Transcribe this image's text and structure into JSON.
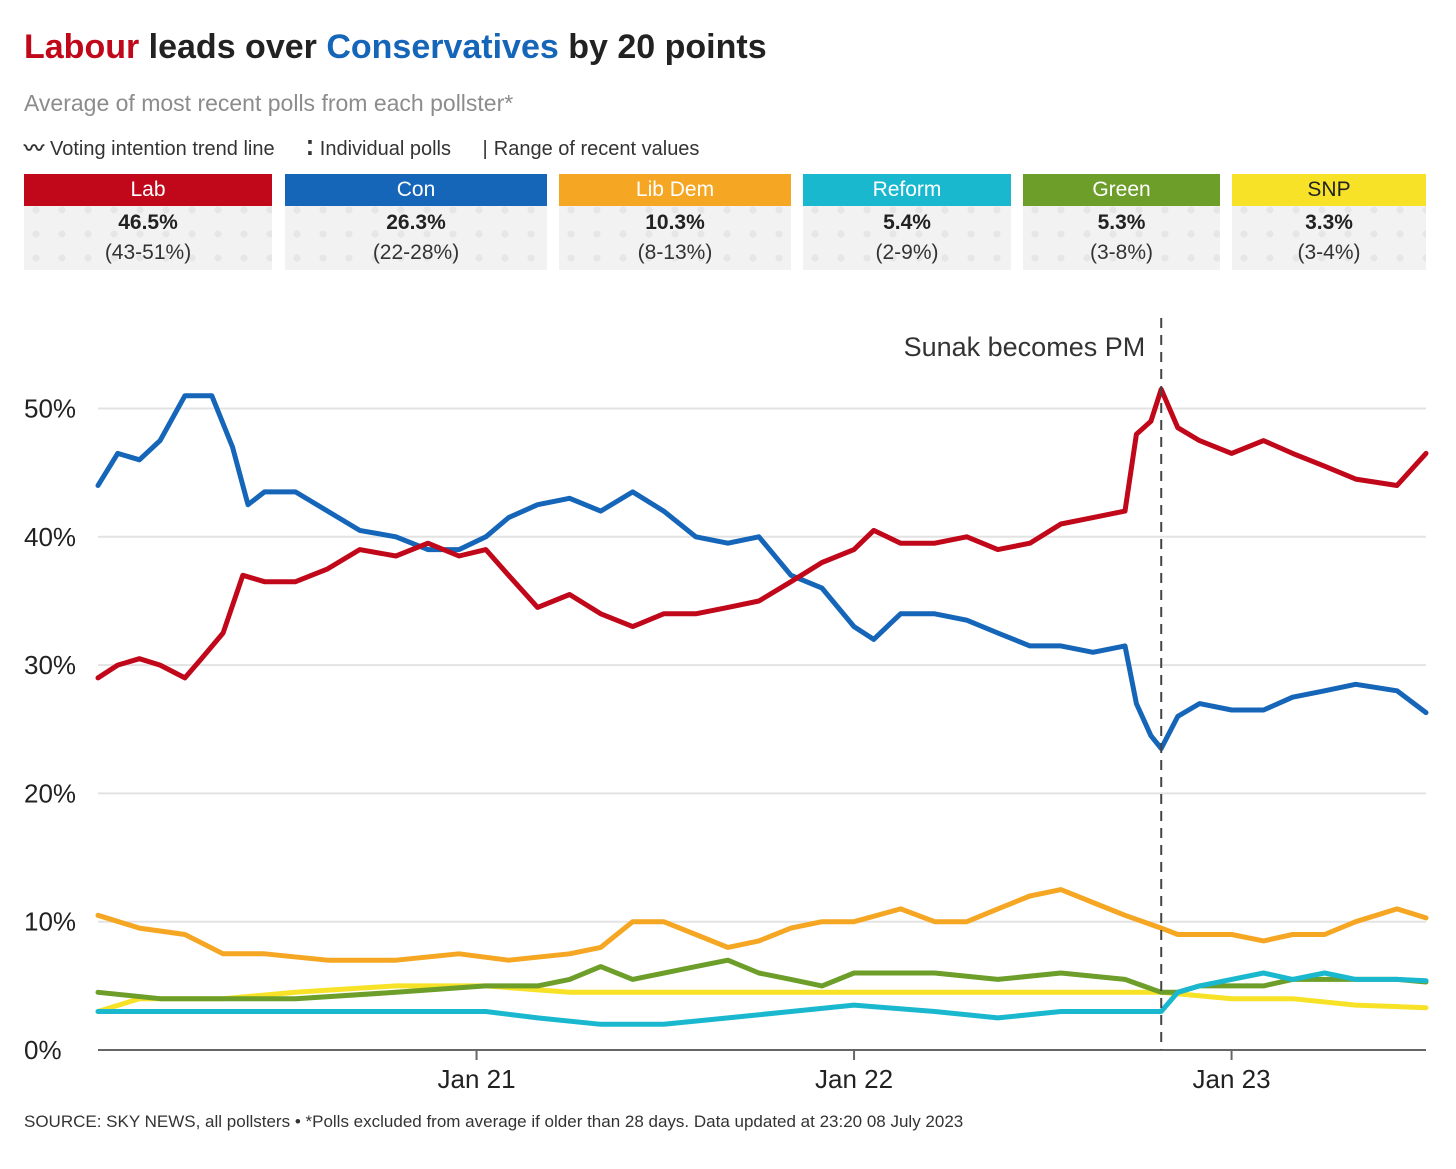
{
  "title": {
    "part1": "Labour",
    "part2": " leads over ",
    "part3": "Conservatives",
    "part4": " by 20 points",
    "lab_color": "#c0081a",
    "con_color": "#1565b8"
  },
  "subtitle": "Average of most recent polls from each pollster*",
  "legend": {
    "trend_icon": "〰",
    "trend": "Voting intention trend line",
    "polls_icon": "⁚",
    "polls": "Individual polls",
    "range_icon": "|",
    "range": "Range of recent values"
  },
  "parties": [
    {
      "name": "Lab",
      "value": "46.5%",
      "range": "(43-51%)",
      "color": "#c0081a"
    },
    {
      "name": "Con",
      "value": "26.3%",
      "range": "(22-28%)",
      "color": "#1565b8"
    },
    {
      "name": "Lib Dem",
      "value": "10.3%",
      "range": "(8-13%)",
      "color": "#f5a623"
    },
    {
      "name": "Reform",
      "value": "5.4%",
      "range": "(2-9%)",
      "color": "#1ab8cf"
    },
    {
      "name": "Green",
      "value": "5.3%",
      "range": "(3-8%)",
      "color": "#6c9e29"
    },
    {
      "name": "SNP",
      "value": "3.3%",
      "range": "(3-4%)",
      "color": "#f7e227"
    }
  ],
  "annotation": "Sunak becomes PM",
  "source": "SOURCE: SKY NEWS, all pollsters • *Polls excluded from average if older than 28 days. Data updated at 23:20 08 July 2023",
  "chart_data": {
    "type": "line",
    "title": "Labour leads over Conservatives by 20 points",
    "x_range": [
      "2020-01-01",
      "2023-07-08"
    ],
    "ylim": [
      0,
      55
    ],
    "y_ticks": [
      0,
      10,
      20,
      30,
      40,
      50
    ],
    "y_tick_labels": [
      "0%",
      "10%",
      "20%",
      "30%",
      "40%",
      "50%"
    ],
    "x_ticks": [
      "2021-01-01",
      "2022-01-01",
      "2023-01-01"
    ],
    "x_tick_labels": [
      "Jan 21",
      "Jan 22",
      "Jan 23"
    ],
    "grid": "horizontal",
    "event": {
      "label": "Sunak becomes PM",
      "date": "2022-10-25"
    },
    "series": [
      {
        "name": "Lab",
        "color": "#c0081a",
        "points": [
          [
            "2020-01-01",
            29
          ],
          [
            "2020-01-20",
            30
          ],
          [
            "2020-02-10",
            30.5
          ],
          [
            "2020-03-01",
            30
          ],
          [
            "2020-03-25",
            29
          ],
          [
            "2020-04-10",
            30.5
          ],
          [
            "2020-05-01",
            32.5
          ],
          [
            "2020-05-20",
            37
          ],
          [
            "2020-06-10",
            36.5
          ],
          [
            "2020-07-10",
            36.5
          ],
          [
            "2020-08-10",
            37.5
          ],
          [
            "2020-09-10",
            39
          ],
          [
            "2020-10-15",
            38.5
          ],
          [
            "2020-11-15",
            39.5
          ],
          [
            "2020-12-15",
            38.5
          ],
          [
            "2021-01-10",
            39
          ],
          [
            "2021-02-01",
            37
          ],
          [
            "2021-03-01",
            34.5
          ],
          [
            "2021-04-01",
            35.5
          ],
          [
            "2021-05-01",
            34
          ],
          [
            "2021-06-01",
            33
          ],
          [
            "2021-07-01",
            34
          ],
          [
            "2021-08-01",
            34
          ],
          [
            "2021-09-01",
            34.5
          ],
          [
            "2021-10-01",
            35
          ],
          [
            "2021-11-01",
            36.5
          ],
          [
            "2021-12-01",
            38
          ],
          [
            "2022-01-01",
            39
          ],
          [
            "2022-01-20",
            40.5
          ],
          [
            "2022-02-15",
            39.5
          ],
          [
            "2022-03-20",
            39.5
          ],
          [
            "2022-04-20",
            40
          ],
          [
            "2022-05-20",
            39
          ],
          [
            "2022-06-20",
            39.5
          ],
          [
            "2022-07-20",
            41
          ],
          [
            "2022-08-20",
            41.5
          ],
          [
            "2022-09-20",
            42
          ],
          [
            "2022-10-01",
            48
          ],
          [
            "2022-10-15",
            49
          ],
          [
            "2022-10-25",
            51.5
          ],
          [
            "2022-11-10",
            48.5
          ],
          [
            "2022-12-01",
            47.5
          ],
          [
            "2023-01-01",
            46.5
          ],
          [
            "2023-02-01",
            47.5
          ],
          [
            "2023-03-01",
            46.5
          ],
          [
            "2023-04-01",
            45.5
          ],
          [
            "2023-05-01",
            44.5
          ],
          [
            "2023-06-10",
            44
          ],
          [
            "2023-07-08",
            46.5
          ]
        ]
      },
      {
        "name": "Con",
        "color": "#1565b8",
        "points": [
          [
            "2020-01-01",
            44
          ],
          [
            "2020-01-20",
            46.5
          ],
          [
            "2020-02-10",
            46
          ],
          [
            "2020-03-01",
            47.5
          ],
          [
            "2020-03-25",
            51
          ],
          [
            "2020-04-20",
            51
          ],
          [
            "2020-05-10",
            47
          ],
          [
            "2020-05-25",
            42.5
          ],
          [
            "2020-06-10",
            43.5
          ],
          [
            "2020-07-10",
            43.5
          ],
          [
            "2020-08-10",
            42
          ],
          [
            "2020-09-10",
            40.5
          ],
          [
            "2020-10-15",
            40
          ],
          [
            "2020-11-15",
            39
          ],
          [
            "2020-12-15",
            39
          ],
          [
            "2021-01-10",
            40
          ],
          [
            "2021-02-01",
            41.5
          ],
          [
            "2021-03-01",
            42.5
          ],
          [
            "2021-04-01",
            43
          ],
          [
            "2021-05-01",
            42
          ],
          [
            "2021-06-01",
            43.5
          ],
          [
            "2021-07-01",
            42
          ],
          [
            "2021-08-01",
            40
          ],
          [
            "2021-09-01",
            39.5
          ],
          [
            "2021-10-01",
            40
          ],
          [
            "2021-11-01",
            37
          ],
          [
            "2021-12-01",
            36
          ],
          [
            "2022-01-01",
            33
          ],
          [
            "2022-01-20",
            32
          ],
          [
            "2022-02-15",
            34
          ],
          [
            "2022-03-20",
            34
          ],
          [
            "2022-04-20",
            33.5
          ],
          [
            "2022-05-20",
            32.5
          ],
          [
            "2022-06-20",
            31.5
          ],
          [
            "2022-07-20",
            31.5
          ],
          [
            "2022-08-20",
            31
          ],
          [
            "2022-09-20",
            31.5
          ],
          [
            "2022-10-01",
            27
          ],
          [
            "2022-10-15",
            24.5
          ],
          [
            "2022-10-25",
            23.5
          ],
          [
            "2022-11-10",
            26
          ],
          [
            "2022-12-01",
            27
          ],
          [
            "2023-01-01",
            26.5
          ],
          [
            "2023-02-01",
            26.5
          ],
          [
            "2023-03-01",
            27.5
          ],
          [
            "2023-04-01",
            28
          ],
          [
            "2023-05-01",
            28.5
          ],
          [
            "2023-06-10",
            28
          ],
          [
            "2023-07-08",
            26.3
          ]
        ]
      },
      {
        "name": "Lib Dem",
        "color": "#f5a623",
        "points": [
          [
            "2020-01-01",
            10.5
          ],
          [
            "2020-02-10",
            9.5
          ],
          [
            "2020-03-25",
            9
          ],
          [
            "2020-05-01",
            7.5
          ],
          [
            "2020-06-10",
            7.5
          ],
          [
            "2020-08-10",
            7
          ],
          [
            "2020-10-15",
            7
          ],
          [
            "2020-12-15",
            7.5
          ],
          [
            "2021-02-01",
            7
          ],
          [
            "2021-04-01",
            7.5
          ],
          [
            "2021-05-01",
            8
          ],
          [
            "2021-06-01",
            10
          ],
          [
            "2021-07-01",
            10
          ],
          [
            "2021-08-01",
            9
          ],
          [
            "2021-09-01",
            8
          ],
          [
            "2021-10-01",
            8.5
          ],
          [
            "2021-11-01",
            9.5
          ],
          [
            "2021-12-01",
            10
          ],
          [
            "2022-01-01",
            10
          ],
          [
            "2022-02-15",
            11
          ],
          [
            "2022-03-20",
            10
          ],
          [
            "2022-04-20",
            10
          ],
          [
            "2022-05-20",
            11
          ],
          [
            "2022-06-20",
            12
          ],
          [
            "2022-07-20",
            12.5
          ],
          [
            "2022-08-20",
            11.5
          ],
          [
            "2022-09-20",
            10.5
          ],
          [
            "2022-10-25",
            9.5
          ],
          [
            "2022-11-10",
            9
          ],
          [
            "2022-12-01",
            9
          ],
          [
            "2023-01-01",
            9
          ],
          [
            "2023-02-01",
            8.5
          ],
          [
            "2023-03-01",
            9
          ],
          [
            "2023-04-01",
            9
          ],
          [
            "2023-05-01",
            10
          ],
          [
            "2023-06-10",
            11
          ],
          [
            "2023-07-08",
            10.3
          ]
        ]
      },
      {
        "name": "Reform",
        "color": "#1ab8cf",
        "points": [
          [
            "2020-01-01",
            3
          ],
          [
            "2020-03-01",
            3
          ],
          [
            "2020-05-01",
            3
          ],
          [
            "2020-07-10",
            3
          ],
          [
            "2020-10-15",
            3
          ],
          [
            "2021-01-10",
            3
          ],
          [
            "2021-03-01",
            2.5
          ],
          [
            "2021-05-01",
            2
          ],
          [
            "2021-07-01",
            2
          ],
          [
            "2021-09-01",
            2.5
          ],
          [
            "2021-11-01",
            3
          ],
          [
            "2022-01-01",
            3.5
          ],
          [
            "2022-03-20",
            3
          ],
          [
            "2022-05-20",
            2.5
          ],
          [
            "2022-07-20",
            3
          ],
          [
            "2022-09-20",
            3
          ],
          [
            "2022-10-25",
            3
          ],
          [
            "2022-11-10",
            4.5
          ],
          [
            "2022-12-01",
            5
          ],
          [
            "2023-01-01",
            5.5
          ],
          [
            "2023-02-01",
            6
          ],
          [
            "2023-03-01",
            5.5
          ],
          [
            "2023-04-01",
            6
          ],
          [
            "2023-05-01",
            5.5
          ],
          [
            "2023-06-10",
            5.5
          ],
          [
            "2023-07-08",
            5.4
          ]
        ]
      },
      {
        "name": "Green",
        "color": "#6c9e29",
        "points": [
          [
            "2020-01-01",
            4.5
          ],
          [
            "2020-03-01",
            4
          ],
          [
            "2020-05-01",
            4
          ],
          [
            "2020-07-10",
            4
          ],
          [
            "2020-10-15",
            4.5
          ],
          [
            "2021-01-10",
            5
          ],
          [
            "2021-03-01",
            5
          ],
          [
            "2021-04-01",
            5.5
          ],
          [
            "2021-05-01",
            6.5
          ],
          [
            "2021-06-01",
            5.5
          ],
          [
            "2021-08-01",
            6.5
          ],
          [
            "2021-09-01",
            7
          ],
          [
            "2021-10-01",
            6
          ],
          [
            "2021-11-01",
            5.5
          ],
          [
            "2021-12-01",
            5
          ],
          [
            "2022-01-01",
            6
          ],
          [
            "2022-03-20",
            6
          ],
          [
            "2022-05-20",
            5.5
          ],
          [
            "2022-07-20",
            6
          ],
          [
            "2022-09-20",
            5.5
          ],
          [
            "2022-10-25",
            4.5
          ],
          [
            "2022-11-10",
            4.5
          ],
          [
            "2022-12-01",
            5
          ],
          [
            "2023-01-01",
            5
          ],
          [
            "2023-02-01",
            5
          ],
          [
            "2023-03-01",
            5.5
          ],
          [
            "2023-04-01",
            5.5
          ],
          [
            "2023-05-01",
            5.5
          ],
          [
            "2023-06-10",
            5.5
          ],
          [
            "2023-07-08",
            5.3
          ]
        ]
      },
      {
        "name": "SNP",
        "color": "#f7e227",
        "points": [
          [
            "2020-01-01",
            3
          ],
          [
            "2020-02-10",
            4
          ],
          [
            "2020-05-01",
            4
          ],
          [
            "2020-07-10",
            4.5
          ],
          [
            "2020-10-15",
            5
          ],
          [
            "2021-01-10",
            5
          ],
          [
            "2021-04-01",
            4.5
          ],
          [
            "2021-07-01",
            4.5
          ],
          [
            "2021-10-01",
            4.5
          ],
          [
            "2022-01-01",
            4.5
          ],
          [
            "2022-04-20",
            4.5
          ],
          [
            "2022-07-20",
            4.5
          ],
          [
            "2022-09-20",
            4.5
          ],
          [
            "2022-10-25",
            4.5
          ],
          [
            "2023-01-01",
            4
          ],
          [
            "2023-03-01",
            4
          ],
          [
            "2023-05-01",
            3.5
          ],
          [
            "2023-07-08",
            3.3
          ]
        ]
      }
    ]
  }
}
